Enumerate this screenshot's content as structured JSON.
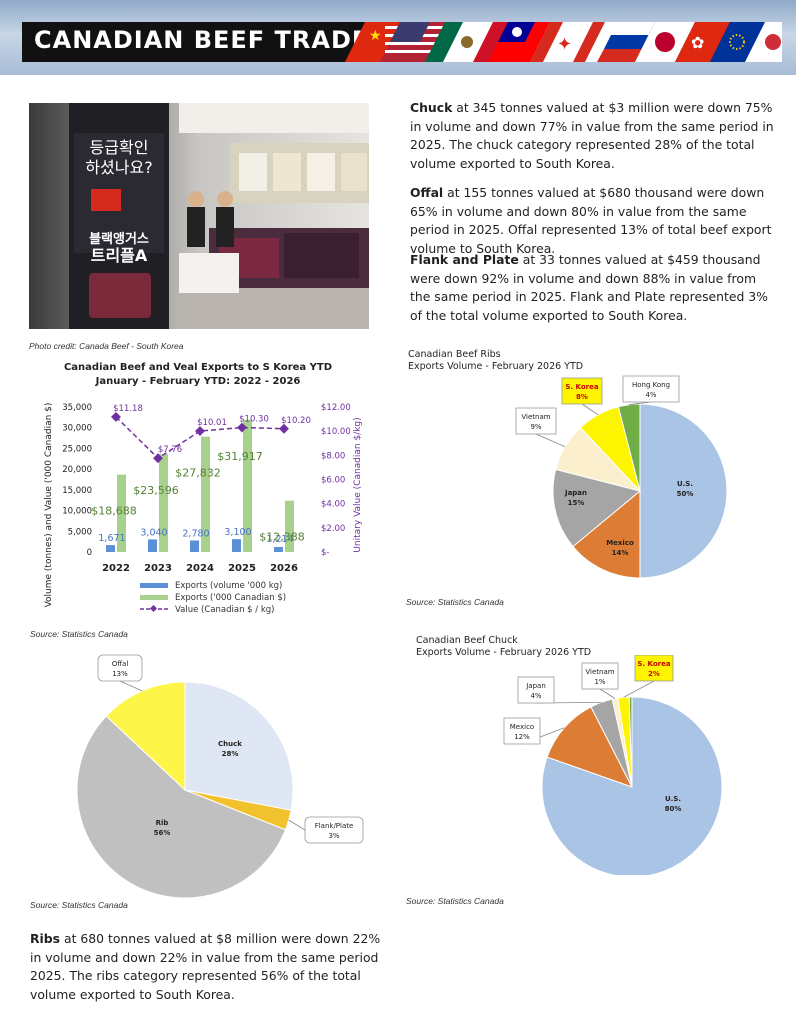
{
  "banner": {
    "title": "CANADIAN BEEF TRADE"
  },
  "photo": {
    "caption": "Photo credit: Canada Beef - South Korea",
    "sign_text_1": "등급확인",
    "sign_text_2": "하셨나요?",
    "sign_text_3": "블랙앵거스",
    "sign_text_4": "트리플A"
  },
  "paragraphs": [
    {
      "lead": "Chuck",
      "text": " at 345 tonnes valued at $3 million were down 75% in volume and down 77% in value from the same period in 2025. The chuck category represented 28% of the total volume exported to South Korea."
    },
    {
      "lead": "Offal",
      "text": " at 155 tonnes valued at $680 thousand were down 65% in volume and down 80% in value from the same period in 2025. Offal represented 13% of total beef export volume to South Korea."
    },
    {
      "lead": "Flank and Plate",
      "text": " at 33 tonnes valued at $459 thousand were down 92% in volume and down 88% in value from the same period in 2025. Flank and Plate represented 3% of the total volume exported to South Korea."
    },
    {
      "lead": "Ribs",
      "text": " at 680 tonnes valued at $8 million were down 22% in volume and down 22% in value from the same period 2025. The ribs category represented 56% of the total volume exported to South Korea."
    }
  ],
  "sources": {
    "combo": "Source: Statistics Canada",
    "ribs": "Source: Statistics Canada",
    "category": "Source: Statistics Canada",
    "chuck": "Source: Statistics Canada"
  },
  "chart_data": [
    {
      "type": "bar",
      "title": "Canadian Beef and Veal Exports to S Korea YTD",
      "subtitle": "January - February YTD: 2022 - 2026",
      "ylabel": "Volume (tonnes) and Value ('000 Canadian $)",
      "y2label": "Unitary Value (Canadian $/kg)",
      "categories": [
        "2022",
        "2023",
        "2024",
        "2025",
        "2026"
      ],
      "ylim": [
        0,
        35000
      ],
      "yticks": [
        "35,000",
        "30,000",
        "25,000",
        "20,000",
        "15,000",
        "10,000",
        "5,000",
        "0"
      ],
      "y2lim": [
        0,
        12
      ],
      "y2ticks": [
        "$12.00",
        "$10.00",
        "$8.00",
        "$6.00",
        "$4.00",
        "$2.00",
        "$-"
      ],
      "series": [
        {
          "name": "Exports (volume  '000 kg)",
          "kind": "bar",
          "color": "#5b8fd6",
          "values": [
            1671,
            3040,
            2780,
            3100,
            1214
          ],
          "labels": [
            "1,671",
            "3,040",
            "2,780",
            "3,100",
            "1,214"
          ]
        },
        {
          "name": "Exports ('000 Canadian $)",
          "kind": "bar",
          "color": "#a9d18e",
          "values": [
            18688,
            23596,
            27832,
            31917,
            12388
          ],
          "labels": [
            "$18,688",
            "$23,596",
            "$27,832",
            "$31,917",
            "$12,388"
          ]
        },
        {
          "name": "Value (Canadian $ / kg)",
          "kind": "line",
          "axis": "y2",
          "color": "#7030a0",
          "values": [
            11.18,
            7.76,
            10.01,
            10.3,
            10.2
          ],
          "labels": [
            "$11.18",
            "$7.76",
            "$10.01",
            "$10.30",
            "$10.20"
          ]
        }
      ],
      "legend_position": "bottom"
    },
    {
      "type": "pie",
      "title": "Canadian Beef Ribs",
      "subtitle": "Exports Volume - February 2026 YTD",
      "slices": [
        {
          "label": "U.S.",
          "value": 50,
          "pct": "50%",
          "color": "#a9c4e5"
        },
        {
          "label": "Mexico",
          "value": 14,
          "pct": "14%",
          "color": "#dd7c35"
        },
        {
          "label": "Japan",
          "value": 15,
          "pct": "15%",
          "color": "#a5a5a5"
        },
        {
          "label": "Vietnam",
          "value": 9,
          "pct": "9%",
          "color": "#fbefcd"
        },
        {
          "label": "S. Korea",
          "value": 8,
          "pct": "8%",
          "color": "#fcf400",
          "highlight": true
        },
        {
          "label": "Hong Kong",
          "value": 4,
          "pct": "4%",
          "color": "#70ad47"
        }
      ]
    },
    {
      "type": "pie",
      "title": "",
      "slices": [
        {
          "label": "Chuck",
          "value": 28,
          "pct": "28%",
          "color": "#dfe7f4"
        },
        {
          "label": "Flank/Plate",
          "value": 3,
          "pct": "3%",
          "color": "#f2c12e"
        },
        {
          "label": "Rib",
          "value": 56,
          "pct": "56%",
          "color": "#c0c0c0"
        },
        {
          "label": "Offal",
          "value": 13,
          "pct": "13%",
          "color": "#fdf547"
        }
      ]
    },
    {
      "type": "pie",
      "title": "Canadian Beef Chuck",
      "subtitle": "Exports Volume - February 2026 YTD",
      "slices": [
        {
          "label": "U.S.",
          "value": 80,
          "pct": "80%",
          "color": "#a9c4e5"
        },
        {
          "label": "Mexico",
          "value": 12,
          "pct": "12%",
          "color": "#dd7c35"
        },
        {
          "label": "Japan",
          "value": 4,
          "pct": "4%",
          "color": "#a5a5a5"
        },
        {
          "label": "Vietnam",
          "value": 1,
          "pct": "1%",
          "color": "#fbefcd"
        },
        {
          "label": "S. Korea",
          "value": 2,
          "pct": "2%",
          "color": "#fcf400",
          "highlight": true
        },
        {
          "label": "",
          "value": 0.5,
          "pct": "",
          "color": "#70ad47"
        }
      ]
    }
  ]
}
